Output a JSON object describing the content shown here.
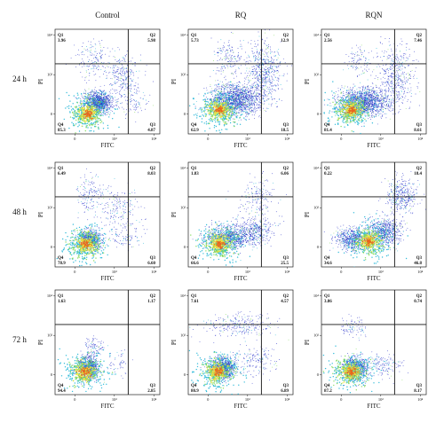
{
  "figure": {
    "columns": [
      "Control",
      "RQ",
      "RQN"
    ],
    "rows": [
      "24 h",
      "48 h",
      "72 h"
    ]
  },
  "chart_data": [
    {
      "type": "scatter",
      "row": "24 h",
      "column": "Control",
      "xlabel": "FITC",
      "ylabel": "PI",
      "quadrants": {
        "Q1": {
          "label": "Q1",
          "value": "3.96"
        },
        "Q2": {
          "label": "Q2",
          "value": "5.98"
        },
        "Q3": {
          "label": "Q3",
          "value": "4.87"
        },
        "Q4": {
          "label": "Q4",
          "value": "85.3"
        }
      },
      "populations": [
        {
          "x": [
            0.4,
            2.0
          ],
          "y": [
            0.0,
            1.2
          ],
          "n": 1100
        },
        {
          "x": [
            1.5,
            3.4
          ],
          "y": [
            0.8,
            3.2
          ],
          "n": 260
        },
        {
          "x": [
            0.0,
            1.8
          ],
          "y": [
            1.8,
            3.8
          ],
          "n": 160
        },
        {
          "x": [
            2.0,
            3.8
          ],
          "y": [
            -0.2,
            1.4
          ],
          "n": 90
        }
      ],
      "core": {
        "x": 0.65,
        "y": 0.0
      }
    },
    {
      "type": "scatter",
      "row": "24 h",
      "column": "RQ",
      "xlabel": "FITC",
      "ylabel": "PI",
      "quadrants": {
        "Q1": {
          "label": "Q1",
          "value": "5.73"
        },
        "Q2": {
          "label": "Q2",
          "value": "12.9"
        },
        "Q3": {
          "label": "Q3",
          "value": "18.5"
        },
        "Q4": {
          "label": "Q4",
          "value": "62.9"
        }
      },
      "populations": [
        {
          "x": [
            0.0,
            2.8
          ],
          "y": [
            -0.1,
            1.6
          ],
          "n": 1500
        },
        {
          "x": [
            1.8,
            3.8
          ],
          "y": [
            0.4,
            3.8
          ],
          "n": 600
        },
        {
          "x": [
            0.2,
            2.0
          ],
          "y": [
            1.8,
            3.9
          ],
          "n": 180
        }
      ],
      "core": {
        "x": 0.6,
        "y": 0.2
      }
    },
    {
      "type": "scatter",
      "row": "24 h",
      "column": "RQN",
      "xlabel": "FITC",
      "ylabel": "PI",
      "quadrants": {
        "Q1": {
          "label": "Q1",
          "value": "2.56"
        },
        "Q2": {
          "label": "Q2",
          "value": "7.46"
        },
        "Q3": {
          "label": "Q3",
          "value": "8.61"
        },
        "Q4": {
          "label": "Q4",
          "value": "81.4"
        }
      },
      "populations": [
        {
          "x": [
            -0.3,
            2.6
          ],
          "y": [
            -0.2,
            1.4
          ],
          "n": 1500
        },
        {
          "x": [
            1.6,
            3.9
          ],
          "y": [
            0.2,
            3.8
          ],
          "n": 450
        },
        {
          "x": [
            0.0,
            1.8
          ],
          "y": [
            1.8,
            3.6
          ],
          "n": 100
        }
      ],
      "core": {
        "x": 0.5,
        "y": 0.2
      }
    },
    {
      "type": "scatter",
      "row": "48 h",
      "column": "Control",
      "xlabel": "FITC",
      "ylabel": "PI",
      "quadrants": {
        "Q1": {
          "label": "Q1",
          "value": "6.49"
        },
        "Q2": {
          "label": "Q2",
          "value": "8.03"
        },
        "Q3": {
          "label": "Q3",
          "value": "6.60"
        },
        "Q4": {
          "label": "Q4",
          "value": "78.9"
        }
      },
      "populations": [
        {
          "x": [
            0.1,
            1.4
          ],
          "y": [
            -0.2,
            0.9
          ],
          "n": 700
        },
        {
          "x": [
            1.0,
            3.4
          ],
          "y": [
            0.6,
            3.2
          ],
          "n": 190
        },
        {
          "x": [
            0.0,
            1.6
          ],
          "y": [
            1.6,
            3.8
          ],
          "n": 150
        },
        {
          "x": [
            1.6,
            3.8
          ],
          "y": [
            -0.2,
            1.2
          ],
          "n": 80
        }
      ],
      "core": {
        "x": 0.55,
        "y": 0.15
      }
    },
    {
      "type": "scatter",
      "row": "48 h",
      "column": "RQ",
      "xlabel": "FITC",
      "ylabel": "PI",
      "quadrants": {
        "Q1": {
          "label": "Q1",
          "value": "1.83"
        },
        "Q2": {
          "label": "Q2",
          "value": "6.06"
        },
        "Q3": {
          "label": "Q3",
          "value": "25.5"
        },
        "Q4": {
          "label": "Q4",
          "value": "66.6"
        }
      },
      "populations": [
        {
          "x": [
            -0.2,
            2.4
          ],
          "y": [
            -0.2,
            1.2
          ],
          "n": 900
        },
        {
          "x": [
            1.4,
            3.4
          ],
          "y": [
            0.0,
            1.6
          ],
          "n": 350
        },
        {
          "x": [
            1.6,
            3.6
          ],
          "y": [
            1.2,
            3.6
          ],
          "n": 180
        }
      ],
      "core": {
        "x": 0.6,
        "y": 0.15
      }
    },
    {
      "type": "scatter",
      "row": "48 h",
      "column": "RQN",
      "xlabel": "FITC",
      "ylabel": "PI",
      "quadrants": {
        "Q1": {
          "label": "Q1",
          "value": "0.22"
        },
        "Q2": {
          "label": "Q2",
          "value": "18.4"
        },
        "Q3": {
          "label": "Q3",
          "value": "46.8"
        },
        "Q4": {
          "label": "Q4",
          "value": "34.6"
        }
      },
      "populations": [
        {
          "x": [
            -0.4,
            1.6
          ],
          "y": [
            -0.2,
            1.0
          ],
          "n": 600
        },
        {
          "x": [
            1.2,
            3.2
          ],
          "y": [
            0.0,
            1.6
          ],
          "n": 650
        },
        {
          "x": [
            2.2,
            3.9
          ],
          "y": [
            1.6,
            3.6
          ],
          "n": 380
        }
      ],
      "core": {
        "x": 1.4,
        "y": 0.3
      }
    },
    {
      "type": "scatter",
      "row": "72 h",
      "column": "Control",
      "xlabel": "FITC",
      "ylabel": "PI",
      "quadrants": {
        "Q1": {
          "label": "Q1",
          "value": "1.63"
        },
        "Q2": {
          "label": "Q2",
          "value": "1.17"
        },
        "Q3": {
          "label": "Q3",
          "value": "2.85"
        },
        "Q4": {
          "label": "Q4",
          "value": "94.4"
        }
      },
      "populations": [
        {
          "x": [
            0.1,
            1.3
          ],
          "y": [
            -0.3,
            1.0
          ],
          "n": 900
        },
        {
          "x": [
            0.4,
            1.6
          ],
          "y": [
            0.8,
            2.0
          ],
          "n": 90
        },
        {
          "x": [
            1.4,
            3.0
          ],
          "y": [
            -0.2,
            1.4
          ],
          "n": 50
        }
      ],
      "core": {
        "x": 0.5,
        "y": 0.15
      }
    },
    {
      "type": "scatter",
      "row": "72 h",
      "column": "RQ",
      "xlabel": "FITC",
      "ylabel": "PI",
      "quadrants": {
        "Q1": {
          "label": "Q1",
          "value": "7.61"
        },
        "Q2": {
          "label": "Q2",
          "value": "4.57"
        },
        "Q3": {
          "label": "Q3",
          "value": "6.89"
        },
        "Q4": {
          "label": "Q4",
          "value": "80.9"
        }
      },
      "populations": [
        {
          "x": [
            0.0,
            1.5
          ],
          "y": [
            -0.3,
            1.0
          ],
          "n": 900
        },
        {
          "x": [
            -0.2,
            3.6
          ],
          "y": [
            1.8,
            3.2
          ],
          "n": 260
        },
        {
          "x": [
            1.4,
            3.6
          ],
          "y": [
            -0.2,
            1.6
          ],
          "n": 150
        }
      ],
      "core": {
        "x": 0.5,
        "y": 0.15
      }
    },
    {
      "type": "scatter",
      "row": "72 h",
      "column": "RQN",
      "xlabel": "FITC",
      "ylabel": "PI",
      "quadrants": {
        "Q1": {
          "label": "Q1",
          "value": "3.86"
        },
        "Q2": {
          "label": "Q2",
          "value": "0.74"
        },
        "Q3": {
          "label": "Q3",
          "value": "8.17"
        },
        "Q4": {
          "label": "Q4",
          "value": "87.2"
        }
      },
      "populations": [
        {
          "x": [
            0.0,
            1.5
          ],
          "y": [
            -0.3,
            1.0
          ],
          "n": 800
        },
        {
          "x": [
            -0.2,
            1.4
          ],
          "y": [
            1.8,
            3.0
          ],
          "n": 90
        },
        {
          "x": [
            1.3,
            3.2
          ],
          "y": [
            -0.2,
            1.2
          ],
          "n": 130
        }
      ],
      "core": {
        "x": 0.5,
        "y": 0.15
      }
    }
  ],
  "axis": {
    "x_ticks": [
      {
        "v": 0,
        "label": "0"
      },
      {
        "v": 2,
        "label": "10²"
      },
      {
        "v": 4,
        "label": "10⁴"
      }
    ],
    "y_ticks": [
      {
        "v": 0,
        "label": "0"
      },
      {
        "v": 2,
        "label": "10²"
      },
      {
        "v": 4,
        "label": "10⁴"
      }
    ],
    "range": [
      -1,
      4.3
    ]
  },
  "colors": {
    "sparse": "#2b35c9",
    "mid": "#1fb5d6",
    "dense": "#7ed957",
    "core": "#f3e23a",
    "hot": "#e8641f",
    "gate": "#111111"
  }
}
